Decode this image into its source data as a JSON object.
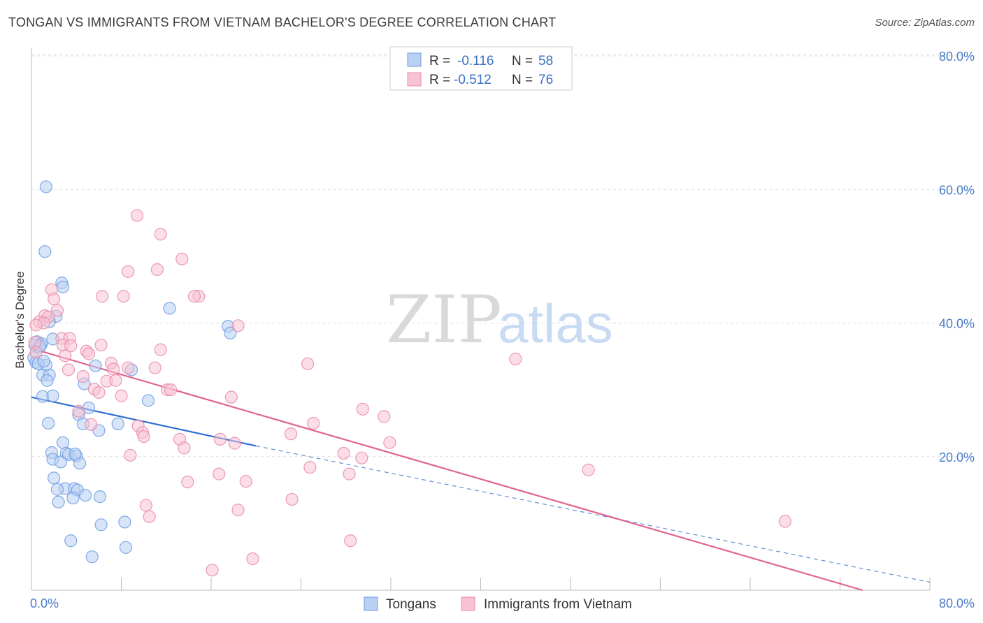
{
  "title": "TONGAN VS IMMIGRANTS FROM VIETNAM BACHELOR'S DEGREE CORRELATION CHART",
  "source": "Source: ZipAtlas.com",
  "watermark": {
    "zip": "ZIP",
    "atlas": "atlas"
  },
  "chart_data": {
    "type": "scatter",
    "title": "TONGAN VS IMMIGRANTS FROM VIETNAM BACHELOR'S DEGREE CORRELATION CHART",
    "xlabel": "",
    "ylabel": "Bachelor's Degree",
    "xlim": [
      0,
      80
    ],
    "ylim": [
      0,
      80
    ],
    "x_tick_labels": [
      "0.0%",
      "80.0%"
    ],
    "y_tick_labels": [
      "20.0%",
      "40.0%",
      "60.0%",
      "80.0%"
    ],
    "y_ticks": [
      20,
      40,
      60,
      80
    ],
    "grid": true,
    "legend_position": "top-center",
    "legend": [
      {
        "r_label": "R =",
        "r_value": "-0.116",
        "n_label": "N =",
        "n_value": "58"
      },
      {
        "r_label": "R =",
        "r_value": "-0.512",
        "n_label": "N =",
        "n_value": "76"
      }
    ],
    "series": [
      {
        "name": "Tongans",
        "color": "#6c9be0",
        "fill": "#b8d0f2",
        "trend": {
          "x0": 0,
          "y0": 28.9,
          "x1": 20,
          "y1": 21.6,
          "dashed_to_x": 80,
          "dashed_to_y": 1.2
        },
        "points": [
          [
            1.3,
            60.4
          ],
          [
            1.2,
            50.7
          ],
          [
            2.7,
            46
          ],
          [
            2.8,
            45.4
          ],
          [
            12.3,
            42.2
          ],
          [
            2.2,
            41
          ],
          [
            1.6,
            40.2
          ],
          [
            17.5,
            39.5
          ],
          [
            0.5,
            37.2
          ],
          [
            0.3,
            36.7
          ],
          [
            0.9,
            36.9
          ],
          [
            0.7,
            36.4
          ],
          [
            1.9,
            37.6
          ],
          [
            0.2,
            34.8
          ],
          [
            0.4,
            34.1
          ],
          [
            1.3,
            33.7
          ],
          [
            5.7,
            33.6
          ],
          [
            8.9,
            33.0
          ],
          [
            1.0,
            32.2
          ],
          [
            1.6,
            32.2
          ],
          [
            1.4,
            31.4
          ],
          [
            4.7,
            30.9
          ],
          [
            1.0,
            29.0
          ],
          [
            1.9,
            29.1
          ],
          [
            10.4,
            28.4
          ],
          [
            5.1,
            27.3
          ],
          [
            4.2,
            26.3
          ],
          [
            1.5,
            25.0
          ],
          [
            4.6,
            24.9
          ],
          [
            7.7,
            24.9
          ],
          [
            6.0,
            23.9
          ],
          [
            2.8,
            22.1
          ],
          [
            1.8,
            20.6
          ],
          [
            3.1,
            20.5
          ],
          [
            3.3,
            20.3
          ],
          [
            4.0,
            20.1
          ],
          [
            1.9,
            19.6
          ],
          [
            2.6,
            19.2
          ],
          [
            4.3,
            19.0
          ],
          [
            2.0,
            16.8
          ],
          [
            3.0,
            15.2
          ],
          [
            3.8,
            15.2
          ],
          [
            2.3,
            15.1
          ],
          [
            4.1,
            15.0
          ],
          [
            4.8,
            14.2
          ],
          [
            6.1,
            14.0
          ],
          [
            3.7,
            13.8
          ],
          [
            2.4,
            13.2
          ],
          [
            8.3,
            10.2
          ],
          [
            6.2,
            9.8
          ],
          [
            3.5,
            7.4
          ],
          [
            8.4,
            6.4
          ],
          [
            5.4,
            5.0
          ],
          [
            17.7,
            38.5
          ],
          [
            0.6,
            33.9
          ],
          [
            0.8,
            36.6
          ],
          [
            1.1,
            34.3
          ],
          [
            3.9,
            20.4
          ]
        ]
      },
      {
        "name": "Immigrants from Vietnam",
        "color": "#e88aa8",
        "fill": "#f7c3d4",
        "trend": {
          "x0": 0,
          "y0": 36.2,
          "x1": 74,
          "y1": 0
        },
        "points": [
          [
            9.4,
            56.1
          ],
          [
            11.5,
            53.3
          ],
          [
            13.4,
            49.6
          ],
          [
            8.6,
            47.7
          ],
          [
            11.2,
            48.0
          ],
          [
            1.8,
            45.0
          ],
          [
            6.3,
            44.0
          ],
          [
            8.2,
            44.0
          ],
          [
            14.9,
            44.0
          ],
          [
            2.0,
            43.6
          ],
          [
            2.3,
            41.9
          ],
          [
            1.2,
            41.1
          ],
          [
            1.5,
            40.9
          ],
          [
            0.7,
            40.2
          ],
          [
            1.1,
            40.0
          ],
          [
            0.4,
            39.7
          ],
          [
            18.4,
            39.6
          ],
          [
            2.7,
            37.7
          ],
          [
            3.4,
            37.7
          ],
          [
            0.3,
            37.1
          ],
          [
            2.8,
            36.7
          ],
          [
            3.5,
            36.6
          ],
          [
            6.2,
            36.7
          ],
          [
            11.5,
            36.0
          ],
          [
            4.9,
            35.8
          ],
          [
            5.1,
            35.4
          ],
          [
            0.4,
            35.6
          ],
          [
            3.0,
            35.1
          ],
          [
            7.1,
            34.0
          ],
          [
            24.6,
            33.9
          ],
          [
            8.6,
            33.3
          ],
          [
            11.0,
            33.3
          ],
          [
            7.3,
            33.1
          ],
          [
            3.3,
            33.0
          ],
          [
            4.6,
            32.0
          ],
          [
            6.7,
            31.3
          ],
          [
            7.5,
            31.4
          ],
          [
            14.5,
            44.0
          ],
          [
            12.1,
            30.0
          ],
          [
            12.4,
            30.0
          ],
          [
            5.6,
            30.1
          ],
          [
            6.0,
            29.6
          ],
          [
            8.0,
            29.1
          ],
          [
            17.8,
            28.9
          ],
          [
            29.5,
            27.1
          ],
          [
            31.4,
            26.0
          ],
          [
            4.2,
            26.8
          ],
          [
            25.1,
            25.0
          ],
          [
            9.5,
            24.6
          ],
          [
            5.3,
            24.8
          ],
          [
            9.9,
            23.6
          ],
          [
            10.0,
            23.0
          ],
          [
            23.1,
            23.4
          ],
          [
            13.2,
            22.6
          ],
          [
            16.8,
            22.6
          ],
          [
            18.1,
            22.0
          ],
          [
            31.9,
            22.1
          ],
          [
            13.6,
            21.3
          ],
          [
            8.8,
            20.2
          ],
          [
            27.8,
            20.5
          ],
          [
            29.4,
            19.8
          ],
          [
            24.8,
            18.4
          ],
          [
            16.7,
            17.4
          ],
          [
            28.3,
            17.4
          ],
          [
            49.6,
            18.0
          ],
          [
            13.9,
            16.2
          ],
          [
            19.1,
            16.3
          ],
          [
            23.2,
            13.6
          ],
          [
            10.2,
            12.7
          ],
          [
            18.4,
            12.0
          ],
          [
            10.5,
            11.0
          ],
          [
            67.1,
            10.3
          ],
          [
            28.4,
            7.4
          ],
          [
            19.7,
            4.7
          ],
          [
            16.1,
            3.0
          ],
          [
            43.1,
            34.6
          ]
        ]
      }
    ]
  }
}
